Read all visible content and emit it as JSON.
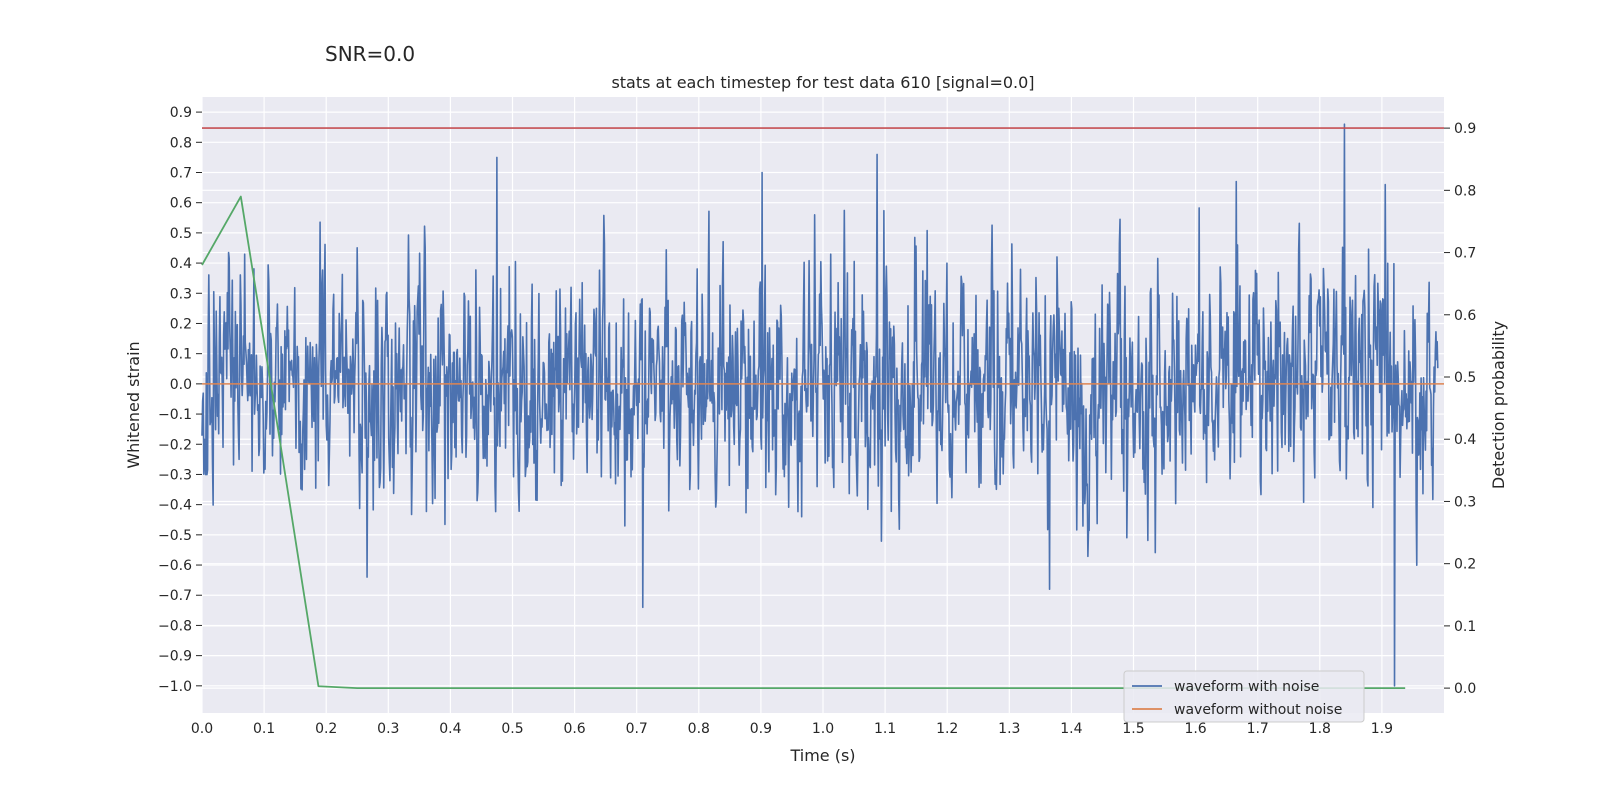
{
  "suptitle": "SNR=0.0",
  "chart_data": {
    "type": "line",
    "title": "stats at each timestep for test data 610 [signal=0.0]",
    "xlabel": "Time (s)",
    "ylabel": "Whitened strain",
    "y2label": "Detection probability",
    "xlim": [
      0.0,
      2.0
    ],
    "ylim": [
      -1.09,
      0.95
    ],
    "y2lim": [
      -0.04,
      0.95
    ],
    "x_ticks": [
      "0.0",
      "0.1",
      "0.2",
      "0.3",
      "0.4",
      "0.5",
      "0.6",
      "0.7",
      "0.8",
      "0.9",
      "1.0",
      "1.1",
      "1.2",
      "1.3",
      "1.4",
      "1.5",
      "1.6",
      "1.7",
      "1.8",
      "1.9"
    ],
    "y_ticks": [
      "0.9",
      "0.8",
      "0.7",
      "0.6",
      "0.5",
      "0.4",
      "0.3",
      "0.2",
      "0.1",
      "0.0",
      "-0.1",
      "-0.2",
      "-0.3",
      "-0.4",
      "-0.5",
      "-0.6",
      "-0.7",
      "-0.8",
      "-0.9",
      "-1.0"
    ],
    "y2_ticks": [
      "0.9",
      "0.8",
      "0.7",
      "0.6",
      "0.5",
      "0.4",
      "0.3",
      "0.2",
      "0.1",
      "0.0"
    ],
    "grid": true,
    "legend_position": "bottom-right",
    "colors": {
      "noise": "#4c72b0",
      "clean": "#dd8452",
      "prob": "#55a868",
      "threshold": "#c44e52",
      "plot_bg": "#eaeaf2",
      "grid": "#ffffff"
    },
    "series": [
      {
        "name": "waveform with noise",
        "axis": "left",
        "generator": {
          "n": 2000,
          "x_start": 0.0,
          "x_end": 1.99,
          "sigma": 0.18,
          "seed": 610
        },
        "notable_peaks": [
          {
            "x": 0.475,
            "y": 0.75
          },
          {
            "x": 0.71,
            "y": -0.74
          },
          {
            "x": 0.902,
            "y": 0.7
          },
          {
            "x": 1.087,
            "y": 0.76
          },
          {
            "x": 1.365,
            "y": -0.68
          },
          {
            "x": 1.665,
            "y": 0.67
          },
          {
            "x": 1.84,
            "y": 0.86
          },
          {
            "x": 1.905,
            "y": 0.66
          },
          {
            "x": 1.92,
            "y": -1.0
          }
        ]
      },
      {
        "name": "waveform without noise",
        "axis": "left",
        "x": [
          0.0,
          2.0
        ],
        "y": [
          0.0,
          0.0
        ]
      },
      {
        "name": "detection probability",
        "axis": "right",
        "x": [
          0.0,
          0.0625,
          0.125,
          0.1875,
          0.25,
          0.3125,
          0.5,
          1.0,
          1.5,
          1.9375
        ],
        "y": [
          0.68,
          0.79,
          0.4,
          0.003,
          0.0,
          0.0,
          0.0,
          0.0,
          0.0,
          0.0
        ]
      },
      {
        "name": "threshold",
        "axis": "right",
        "x": [
          0.0,
          2.0
        ],
        "y": [
          0.9,
          0.9
        ]
      }
    ],
    "legend": [
      "waveform with noise",
      "waveform without noise"
    ]
  }
}
